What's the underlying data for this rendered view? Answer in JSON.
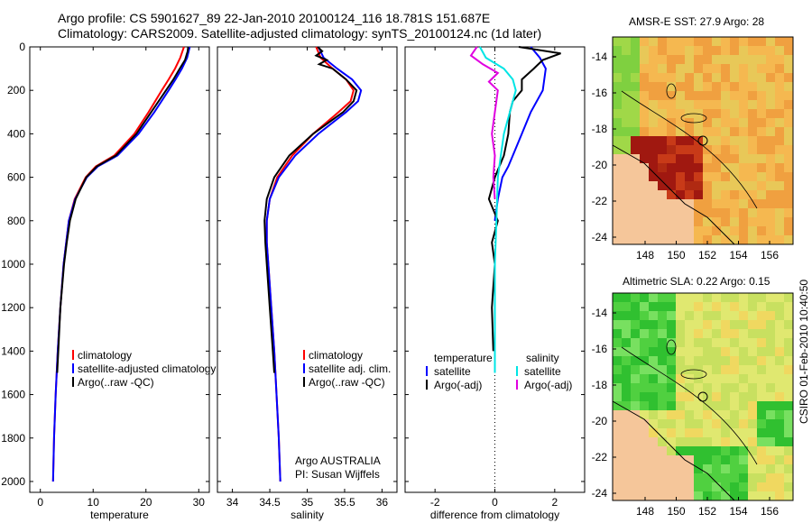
{
  "header": {
    "line1": "Argo profile: CS 5901627_89 22-Jan-2010 20100124_116 18.781S 151.687E",
    "line2": "Climatology: CARS2009. Satellite-adjusted climatology: synTS_20100124.nc (1d later)"
  },
  "colors": {
    "climatology": "#ff0000",
    "satellite": "#0000ff",
    "argo": "#000000",
    "sal_satellite": "#00e5e5",
    "sal_argo": "#e000e0",
    "land": "#f5c69a"
  },
  "chart_data": [
    {
      "id": "temperature",
      "type": "line",
      "xlabel": "temperature",
      "ylabel": "",
      "xlim": [
        -2,
        32
      ],
      "ylim": [
        2050,
        0
      ],
      "xticks": [
        0,
        10,
        20,
        30
      ],
      "xtick_labels": [
        "0",
        "10",
        "20",
        "30"
      ],
      "yticks": [
        0,
        200,
        400,
        600,
        800,
        1000,
        1200,
        1400,
        1600,
        1800,
        2000
      ],
      "ytick_labels": [
        "0",
        "200",
        "400",
        "600",
        "800",
        "1000",
        "1200",
        "1400",
        "1600",
        "1800",
        "2000"
      ],
      "legend": [
        {
          "label": "climatology",
          "color": "#ff0000"
        },
        {
          "label": "satellite-adjusted climatology",
          "color": "#0000ff"
        },
        {
          "label": "Argo(..raw -QC)",
          "color": "#000000"
        }
      ],
      "series": [
        {
          "name": "climatology",
          "color": "#ff0000",
          "depth": [
            0,
            50,
            100,
            150,
            200,
            300,
            400,
            500,
            550,
            600,
            700,
            800,
            1000,
            1200,
            1400,
            1600,
            1800,
            2000
          ],
          "values": [
            27.2,
            26.5,
            25.5,
            24.3,
            23.0,
            20.5,
            17.8,
            14.0,
            10.5,
            8.6,
            6.5,
            5.4,
            4.4,
            3.8,
            3.3,
            2.9,
            2.6,
            2.4
          ]
        },
        {
          "name": "satellite-adjusted climatology",
          "color": "#0000ff",
          "depth": [
            0,
            50,
            100,
            150,
            200,
            300,
            400,
            500,
            550,
            600,
            700,
            800,
            1000,
            1200,
            1400,
            1600,
            1800,
            2000
          ],
          "values": [
            28.3,
            27.8,
            26.8,
            25.6,
            24.3,
            21.6,
            18.6,
            14.6,
            10.9,
            8.8,
            6.6,
            5.4,
            4.4,
            3.8,
            3.3,
            2.9,
            2.6,
            2.4
          ]
        },
        {
          "name": "Argo(..raw -QC)",
          "color": "#000000",
          "depth": [
            0,
            20,
            60,
            100,
            150,
            200,
            300,
            400,
            500,
            550,
            600,
            700,
            800,
            900,
            1000,
            1200,
            1400,
            1500
          ],
          "values": [
            28.0,
            27.9,
            27.4,
            26.4,
            25.2,
            23.8,
            21.0,
            18.2,
            14.3,
            10.7,
            8.7,
            6.7,
            5.6,
            5.0,
            4.5,
            3.8,
            3.4,
            3.2
          ]
        }
      ]
    },
    {
      "id": "salinity",
      "type": "line",
      "xlabel": "salinity",
      "xlim": [
        33.8,
        36.2
      ],
      "ylim": [
        2050,
        0
      ],
      "xticks": [
        34,
        34.5,
        35,
        35.5,
        36
      ],
      "xtick_labels": [
        "34",
        "34.5",
        "35",
        "35.5",
        "36"
      ],
      "legend": [
        {
          "label": "climatology",
          "color": "#ff0000"
        },
        {
          "label": "satellite adj. clim.",
          "color": "#0000ff"
        },
        {
          "label": "Argo(..raw -QC)",
          "color": "#000000"
        }
      ],
      "annotation": [
        "Argo AUSTRALIA",
        "PI: Susan Wijffels"
      ],
      "series": [
        {
          "name": "climatology",
          "color": "#ff0000",
          "depth": [
            0,
            50,
            100,
            150,
            200,
            250,
            300,
            400,
            500,
            600,
            700,
            800,
            900,
            1000,
            1200,
            1400,
            1600,
            1800,
            2000
          ],
          "values": [
            35.12,
            35.18,
            35.34,
            35.52,
            35.62,
            35.58,
            35.42,
            35.08,
            34.8,
            34.6,
            34.5,
            34.46,
            34.46,
            34.48,
            34.52,
            34.56,
            34.59,
            34.62,
            34.64
          ]
        },
        {
          "name": "satellite adj. clim.",
          "color": "#0000ff",
          "depth": [
            0,
            50,
            100,
            150,
            200,
            250,
            300,
            400,
            500,
            600,
            700,
            800,
            900,
            1000,
            1200,
            1400,
            1600,
            1800,
            2000
          ],
          "values": [
            35.15,
            35.22,
            35.4,
            35.6,
            35.72,
            35.68,
            35.52,
            35.15,
            34.84,
            34.62,
            34.5,
            34.46,
            34.46,
            34.48,
            34.52,
            34.56,
            34.59,
            34.62,
            34.64
          ]
        },
        {
          "name": "Argo(..raw -QC)",
          "color": "#000000",
          "depth": [
            0,
            20,
            40,
            60,
            80,
            100,
            150,
            200,
            250,
            300,
            400,
            500,
            600,
            700,
            800,
            900,
            1000,
            1200,
            1400,
            1500
          ],
          "values": [
            35.14,
            35.2,
            35.12,
            35.26,
            35.16,
            35.34,
            35.52,
            35.66,
            35.62,
            35.48,
            35.08,
            34.76,
            34.56,
            34.46,
            34.43,
            34.44,
            34.46,
            34.5,
            34.54,
            34.56
          ]
        }
      ]
    },
    {
      "id": "difference",
      "type": "line",
      "xlabel": "difference from climatology",
      "xlim": [
        -3,
        3
      ],
      "ylim": [
        2050,
        0
      ],
      "xticks": [
        -2,
        0,
        2
      ],
      "xtick_labels": [
        "-2",
        "0",
        "2"
      ],
      "zero_line": 0,
      "legend_groups": [
        {
          "title": "temperature",
          "items": [
            {
              "label": "satellite",
              "color": "#0000ff"
            },
            {
              "label": "Argo(-adj)",
              "color": "#000000"
            }
          ]
        },
        {
          "title": "salinity",
          "items": [
            {
              "label": "satellite",
              "color": "#00e5e5"
            },
            {
              "label": "Argo(-adj)",
              "color": "#e000e0"
            }
          ]
        }
      ],
      "series": [
        {
          "name": "temperature satellite",
          "color": "#0000ff",
          "depth": [
            0,
            50,
            100,
            200,
            300,
            400,
            500,
            550,
            600,
            700,
            800
          ],
          "values": [
            1.2,
            1.5,
            1.7,
            1.6,
            1.2,
            0.9,
            0.6,
            0.45,
            0.25,
            0.1,
            0.0
          ]
        },
        {
          "name": "temperature Argo(-adj)",
          "color": "#000000",
          "depth": [
            0,
            30,
            60,
            100,
            150,
            200,
            250,
            300,
            400,
            500,
            600,
            700,
            800,
            900,
            1000,
            1200,
            1400
          ],
          "values": [
            0.8,
            2.2,
            1.6,
            1.3,
            0.9,
            0.9,
            0.6,
            0.5,
            0.45,
            0.3,
            0.0,
            -0.2,
            0.1,
            -0.1,
            0.0,
            -0.1,
            -0.05
          ]
        },
        {
          "name": "salinity satellite",
          "color": "#00e5e5",
          "depth": [
            0,
            50,
            100,
            150,
            200,
            300,
            400,
            500,
            600,
            800,
            1000,
            1200,
            1400,
            1500
          ],
          "values": [
            -0.5,
            -0.3,
            0.3,
            0.6,
            0.7,
            0.5,
            0.3,
            0.2,
            0.1,
            0.05,
            0.0,
            0.0,
            0.0,
            0.0
          ]
        },
        {
          "name": "salinity Argo(-adj)",
          "color": "#e000e0",
          "depth": [
            0,
            40,
            80,
            120,
            160,
            200,
            300,
            400,
            500,
            600,
            700
          ],
          "values": [
            -0.6,
            -0.8,
            -0.4,
            0.1,
            -0.2,
            0.1,
            0.0,
            -0.1,
            0.0,
            -0.05,
            0.0
          ]
        }
      ]
    }
  ],
  "maps": [
    {
      "title": "AMSR-E SST: 27.9 Argo: 28",
      "xticks": [
        "148",
        "150",
        "152",
        "154",
        "156"
      ],
      "yticks": [
        "-14",
        "-16",
        "-18",
        "-20",
        "-22",
        "-24"
      ]
    },
    {
      "title": "Altimetric SLA: 0.22 Argo: 0.15",
      "xticks": [
        "148",
        "150",
        "152",
        "154",
        "156"
      ],
      "yticks": [
        "-14",
        "-16",
        "-18",
        "-20",
        "-22",
        "-24"
      ]
    }
  ],
  "footer": {
    "side_text": "CSIRO 01-Feb-2010 10:40:50"
  }
}
